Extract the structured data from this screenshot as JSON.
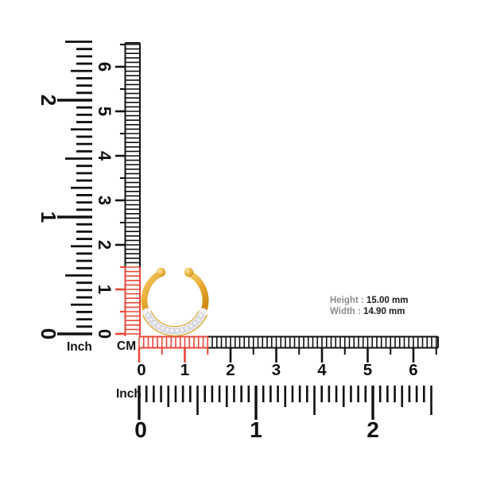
{
  "page": {
    "background": "#ffffff"
  },
  "colors": {
    "ink": "#111111",
    "highlight_red": "#e8473a",
    "label_gray": "#8c8c8c",
    "value_black": "#1a1a1a",
    "gold": "#e7ab33",
    "gold_light": "#f7d06e",
    "gold_dark": "#cf8d18",
    "pave_metal": "#f2f2f5",
    "diamond": "#e7e7ec",
    "diamond_edge": "#c6c6d0"
  },
  "rulers": {
    "vertical_inch": {
      "unit_label": "Inch",
      "digit_labels": [
        "0",
        "1",
        "2"
      ]
    },
    "vertical_cm": {
      "unit_label": "CM",
      "digit_labels": [
        "0",
        "1",
        "2",
        "3",
        "4",
        "5",
        "6"
      ],
      "highlight_span_cm": 1.5
    },
    "horizontal_cm": {
      "digit_labels": [
        "0",
        "1",
        "2",
        "3",
        "4",
        "5",
        "6"
      ],
      "highlight_span_cm": 1.5
    },
    "horizontal_inch": {
      "unit_label": "Inch",
      "digit_labels": [
        "0",
        "1",
        "2"
      ]
    }
  },
  "measurements": {
    "height_label": "Height :",
    "height_value": "15.00 mm",
    "width_label": "Width :",
    "width_value": "14.90 mm"
  }
}
